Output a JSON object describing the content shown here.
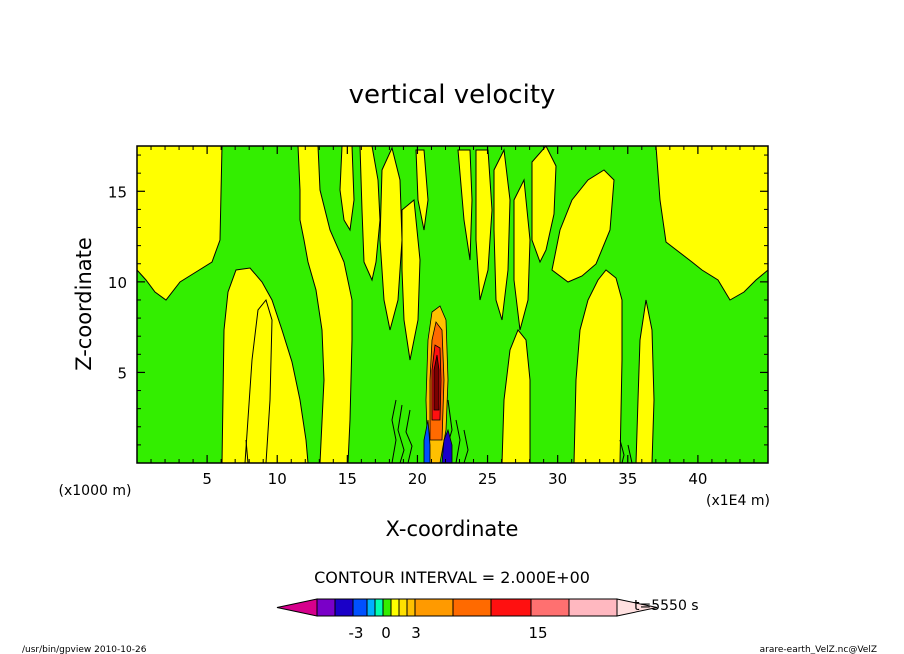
{
  "chart_data": {
    "type": "heatmap",
    "title": "vertical velocity",
    "xlabel": "X-coordinate",
    "ylabel": "Z-coordinate",
    "x_unit_left": "(x1000 m)",
    "x_unit_right": "(x1E4 m)",
    "xlim": [
      0,
      45
    ],
    "ylim": [
      0,
      17.5
    ],
    "x_ticks": [
      5,
      10,
      15,
      20,
      25,
      30,
      35,
      40
    ],
    "y_ticks": [
      5,
      10,
      15
    ],
    "contour_interval_text": "CONTOUR INTERVAL = 2.000E+00",
    "time_label": "t=5550 s",
    "colorbar": {
      "colors": [
        "#d6008c",
        "#7a00c8",
        "#1a00c8",
        "#0050ff",
        "#00b0ff",
        "#00ffb0",
        "#33ee00",
        "#ffff00",
        "#ffe000",
        "#ffc000",
        "#ff9a00",
        "#ff6a00",
        "#ff1010",
        "#ff7070",
        "#ffb8c0",
        "#ffe0e0"
      ],
      "tick_labels": [
        "-3",
        "0",
        "3",
        "15"
      ],
      "tick_values": [
        -3,
        0,
        3,
        15
      ]
    },
    "grid": false,
    "legend": "bottom"
  },
  "footer": {
    "left": "/usr/bin/gpview   2010-10-26",
    "right": "arare-earth_VelZ.nc@VelZ"
  },
  "colors": {
    "positive": "#ffff00",
    "negative": "#33ee00",
    "line": "#000000"
  }
}
